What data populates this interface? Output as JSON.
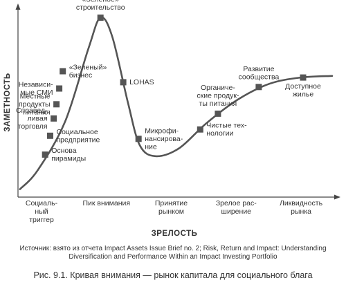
{
  "chart_data": {
    "type": "line",
    "title": "",
    "xlabel": "ЗРЕЛОСТЬ",
    "ylabel": "ЗАМЕТНОСТЬ",
    "x_ticks": [
      [
        "Социаль-",
        "ный",
        "триггер"
      ],
      [
        "Пик внимания"
      ],
      [
        "Принятие",
        "рынком"
      ],
      [
        "Зрелое рас-",
        "ширение"
      ],
      [
        "Ликвидность",
        "рынка"
      ]
    ],
    "curve": [
      [
        0.5,
        0.5
      ],
      [
        5,
        1.7
      ],
      [
        12,
        4.8
      ],
      [
        18,
        9.5
      ],
      [
        21,
        11.4
      ],
      [
        24,
        10.2
      ],
      [
        28,
        6.0
      ],
      [
        31,
        3.3
      ],
      [
        35,
        2.6
      ],
      [
        41,
        3.1
      ],
      [
        48,
        4.7
      ],
      [
        56,
        6.2
      ],
      [
        64,
        7.2
      ],
      [
        72,
        7.6
      ],
      [
        80,
        7.7
      ]
    ],
    "points": [
      {
        "x": 6.9,
        "y": 2.7,
        "label": [
          "Основа",
          "пирамиды"
        ],
        "side": "right"
      },
      {
        "x": 8.2,
        "y": 3.9,
        "label": [
          "Социальное",
          "предприятие"
        ],
        "side": "right"
      },
      {
        "x": 9.1,
        "y": 5.0,
        "label": [
          "Справед-",
          "ливая",
          "торговля"
        ],
        "side": "left"
      },
      {
        "x": 9.8,
        "y": 5.9,
        "label": [
          "Местные",
          "продукты",
          "питания"
        ],
        "side": "left"
      },
      {
        "x": 10.5,
        "y": 6.9,
        "label": [
          "Независи-",
          "мые СМИ"
        ],
        "side": "left"
      },
      {
        "x": 11.4,
        "y": 8.0,
        "label": [
          "«Зеленый»",
          "бизнес"
        ],
        "side": "right"
      },
      {
        "x": 21.0,
        "y": 11.4,
        "label": [
          "«Зеленое»",
          "строительство"
        ],
        "side": "above"
      },
      {
        "x": 26.8,
        "y": 7.3,
        "label": [
          "LOHAS"
        ],
        "side": "right"
      },
      {
        "x": 30.7,
        "y": 3.7,
        "label": [
          "Микрофи-",
          "нансирова-",
          "ние"
        ],
        "side": "right"
      },
      {
        "x": 46.4,
        "y": 4.3,
        "label": [
          "Чистые тех-",
          "нологии"
        ],
        "side": "right"
      },
      {
        "x": 50.9,
        "y": 5.3,
        "label": [
          "Органиче-",
          "ские продук-",
          "ты питания"
        ],
        "side": "above"
      },
      {
        "x": 61.3,
        "y": 7.0,
        "label": [
          "Развитие",
          "сообщества"
        ],
        "side": "above"
      },
      {
        "x": 72.6,
        "y": 7.6,
        "label": [
          "Доступное",
          "жилье"
        ],
        "side": "below"
      }
    ],
    "xlim": [
      0,
      80
    ],
    "ylim": [
      0,
      12
    ],
    "grid": false,
    "legend": "none"
  },
  "source": {
    "line1": "Источник: взято из отчета  Impact Assets Issue Brief no. 2; Risk, Return and Impact: Understanding",
    "line2": "Diversification and Performance Within an Impact Investing Portfolio"
  },
  "caption": "Рис. 9.1. Кривая внимания — рынок капитала для социального блага",
  "colors": {
    "curve": "#555555",
    "marker": "#555555",
    "axis": "#444444",
    "text": "#333333"
  }
}
